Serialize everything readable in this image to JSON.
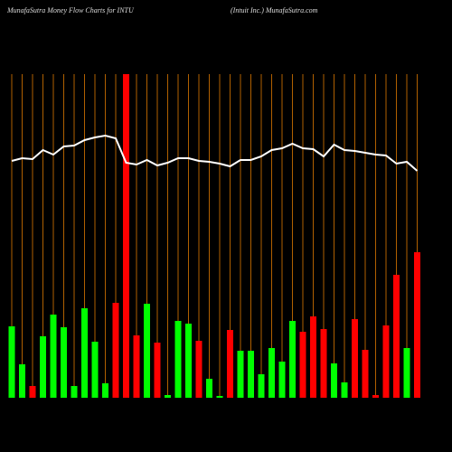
{
  "chart_data": {
    "type": "bar",
    "title": "MunafaSutra  Money Flow  Charts for INTU",
    "subtitle": "(Intuit Inc.) MunafaSutra.com",
    "values": [
      79,
      37,
      13,
      68,
      92,
      78,
      13,
      99,
      62,
      16,
      105,
      358,
      69,
      104,
      61,
      3,
      85,
      82,
      63,
      21,
      2,
      75,
      52,
      52,
      26,
      55,
      40,
      85,
      73,
      90,
      76,
      38,
      17,
      87,
      53,
      3,
      80,
      136,
      55,
      161
    ],
    "colors": [
      "#00ff00",
      "#00ff00",
      "#ff0000",
      "#00ff00",
      "#00ff00",
      "#00ff00",
      "#00ff00",
      "#00ff00",
      "#00ff00",
      "#00ff00",
      "#ff0000",
      "#ff0000",
      "#ff0000",
      "#00ff00",
      "#ff0000",
      "#00ff00",
      "#00ff00",
      "#00ff00",
      "#ff0000",
      "#00ff00",
      "#00ff00",
      "#ff0000",
      "#00ff00",
      "#00ff00",
      "#00ff00",
      "#00ff00",
      "#00ff00",
      "#00ff00",
      "#ff0000",
      "#ff0000",
      "#ff0000",
      "#00ff00",
      "#00ff00",
      "#ff0000",
      "#ff0000",
      "#ff0000",
      "#ff0000",
      "#ff0000",
      "#00ff00",
      "#ff0000"
    ],
    "line_values": [
      262,
      265,
      264,
      274,
      269,
      278,
      279,
      285,
      288,
      290,
      287,
      260,
      258,
      263,
      257,
      260,
      265,
      265,
      262,
      261,
      259,
      256,
      263,
      263,
      267,
      274,
      276,
      281,
      276,
      275,
      267,
      280,
      274,
      273,
      271,
      269,
      268,
      259,
      261,
      251
    ],
    "line_color": "#ffffff",
    "grid_color": "#b06000",
    "ylim": [
      0,
      358
    ],
    "grid": true
  }
}
